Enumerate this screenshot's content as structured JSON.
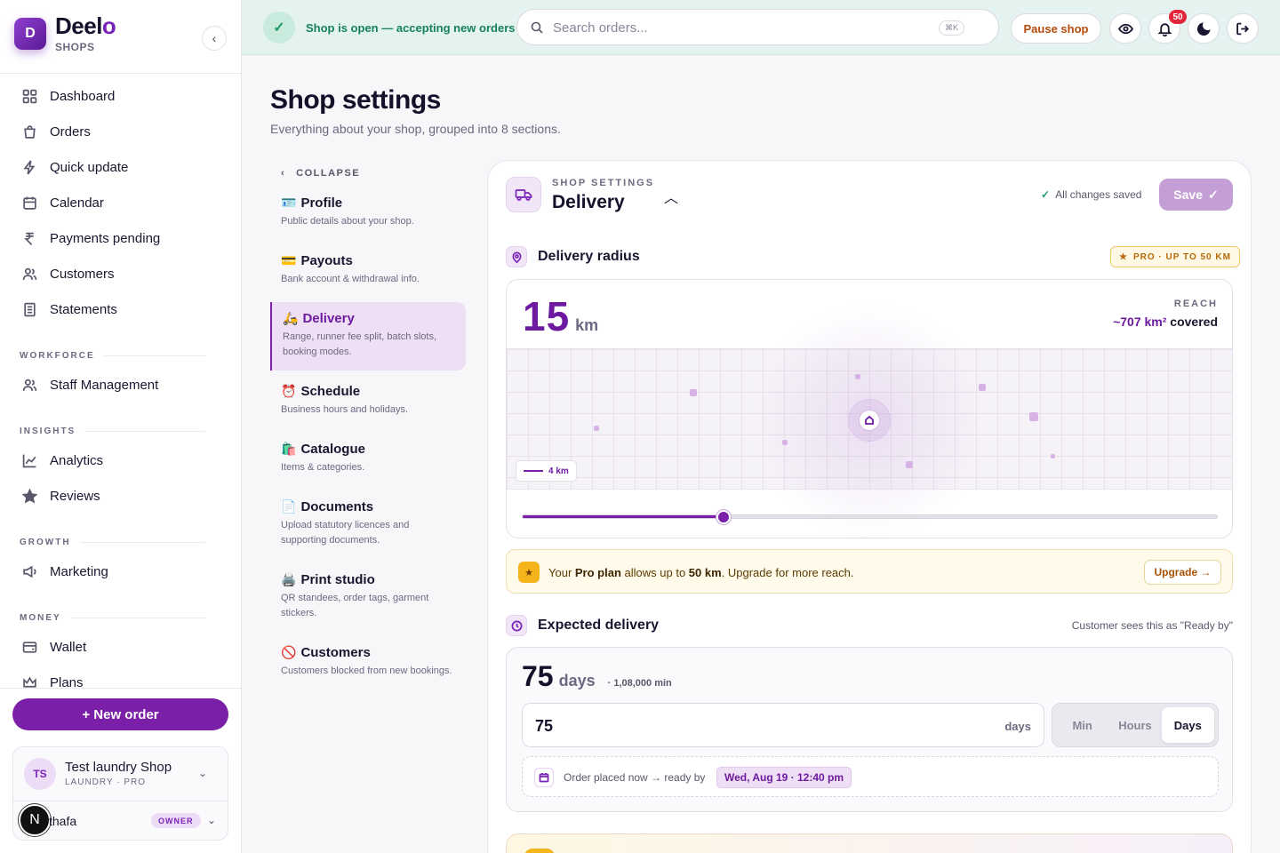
{
  "brand": {
    "initial": "D",
    "name": "Deel",
    "name_accent": "o",
    "sub": "SHOPS"
  },
  "sidebar": {
    "items": [
      {
        "label": "Dashboard",
        "icon": "grid-icon"
      },
      {
        "label": "Orders",
        "icon": "bag-icon"
      },
      {
        "label": "Quick update",
        "icon": "bolt-icon"
      },
      {
        "label": "Calendar",
        "icon": "calendar-icon"
      },
      {
        "label": "Payments pending",
        "icon": "rupee-icon"
      },
      {
        "label": "Customers",
        "icon": "users-icon"
      },
      {
        "label": "Statements",
        "icon": "document-icon"
      }
    ],
    "groups": [
      {
        "title": "WORKFORCE",
        "items": [
          {
            "label": "Staff Management",
            "icon": "users-icon"
          }
        ]
      },
      {
        "title": "INSIGHTS",
        "items": [
          {
            "label": "Analytics",
            "icon": "chart-icon"
          },
          {
            "label": "Reviews",
            "icon": "star-icon"
          }
        ]
      },
      {
        "title": "GROWTH",
        "items": [
          {
            "label": "Marketing",
            "icon": "megaphone-icon"
          }
        ]
      },
      {
        "title": "MONEY",
        "items": [
          {
            "label": "Wallet",
            "icon": "wallet-icon"
          },
          {
            "label": "Plans",
            "icon": "crown-icon"
          }
        ]
      }
    ],
    "new_order": "+ New order",
    "shop": {
      "initials": "TS",
      "name": "Test laundry Shop",
      "meta": "LAUNDRY · PRO"
    },
    "user": {
      "initial": "N",
      "name": "thafa",
      "role": "OWNER"
    }
  },
  "topbar": {
    "status": "Shop is open — accepting new orders",
    "search_placeholder": "Search orders...",
    "shortcut": "⌘K",
    "pause": "Pause shop",
    "notifications": "50"
  },
  "page": {
    "title": "Shop settings",
    "subtitle": "Everything about your shop, grouped into 8 sections."
  },
  "sections": {
    "collapse": "COLLAPSE",
    "items": [
      {
        "emoji": "🪪",
        "title": "Profile",
        "desc": "Public details about your shop."
      },
      {
        "emoji": "💳",
        "title": "Payouts",
        "desc": "Bank account & withdrawal info."
      },
      {
        "emoji": "🛵",
        "title": "Delivery",
        "desc": "Range, runner fee split, batch slots, booking modes."
      },
      {
        "emoji": "⏰",
        "title": "Schedule",
        "desc": "Business hours and holidays."
      },
      {
        "emoji": "🛍️",
        "title": "Catalogue",
        "desc": "Items & categories."
      },
      {
        "emoji": "📄",
        "title": "Documents",
        "desc": "Upload statutory licences and supporting documents."
      },
      {
        "emoji": "🖨️",
        "title": "Print studio",
        "desc": "QR standees, order tags, garment stickers."
      },
      {
        "emoji": "🚫",
        "title": "Customers",
        "desc": "Customers blocked from new bookings."
      }
    ]
  },
  "panel": {
    "kicker": "SHOP SETTINGS",
    "title": "Delivery",
    "saved": "All changes saved",
    "save": "Save",
    "radius": {
      "label": "Delivery radius",
      "pro_pill": "PRO · UP TO 50 KM",
      "value": "15",
      "unit": "km",
      "reach_label": "REACH",
      "reach_value": "~707 km²",
      "reach_suffix": " covered",
      "scale": "4 km",
      "slider_fraction": 0.29
    },
    "upgrade": {
      "pre": "Your ",
      "plan": "Pro plan",
      "mid": " allows up to ",
      "limit": "50 km",
      "post": ". Upgrade for more reach.",
      "button": "Upgrade →"
    },
    "expected": {
      "label": "Expected delivery",
      "note": "Customer sees this as \"Ready by\"",
      "value": "75",
      "unit": "days",
      "minutes": "· 1,08,000 min",
      "input_value": "75",
      "input_suffix": "days",
      "units": [
        "Min",
        "Hours",
        "Days"
      ],
      "selected_unit": "Days",
      "ready_text": "Order placed now → ready by",
      "ready_date": "Wed, Aug 19 · 12:40 pm"
    }
  },
  "colors": {
    "accent": "#7b1fa8",
    "status_green": "#16825a",
    "warning": "#f4b41a",
    "badge_red": "#e3263b"
  }
}
